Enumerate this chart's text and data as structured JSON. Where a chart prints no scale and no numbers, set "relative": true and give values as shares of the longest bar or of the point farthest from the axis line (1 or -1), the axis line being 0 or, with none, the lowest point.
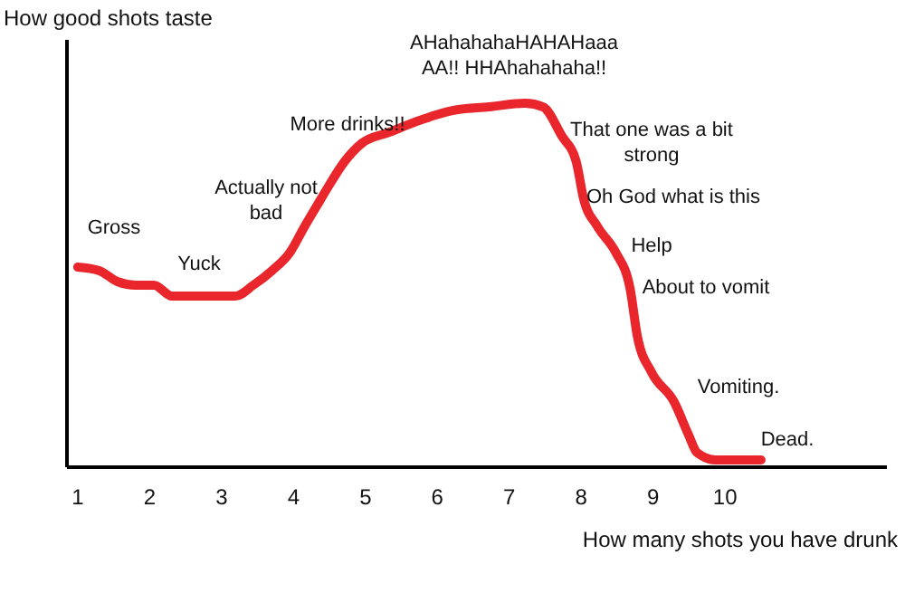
{
  "chart_data": {
    "type": "line",
    "relative": true,
    "ylabel": "How good shots taste",
    "xlabel": "How many shots you have drunk",
    "xlim": [
      0.85,
      12.25
    ],
    "xticks": [
      1,
      2,
      3,
      4,
      5,
      6,
      7,
      8,
      9,
      10
    ],
    "grid": false,
    "marker": "none",
    "line_style": "solid",
    "series": [
      {
        "color": "#e8262b",
        "x": [
          1.0,
          1.3,
          1.55,
          1.81,
          2.06,
          2.31,
          2.69,
          3.19,
          3.44,
          3.7,
          3.95,
          4.15,
          4.33,
          4.45,
          4.71,
          4.95,
          5.33,
          5.71,
          6.21,
          6.72,
          7.22,
          7.47,
          7.73,
          7.93,
          8.03,
          8.23,
          8.48,
          8.68,
          8.78,
          8.98,
          9.29,
          9.49,
          9.61,
          9.87,
          10.24,
          10.5
        ],
        "values": [
          0.55,
          0.54,
          0.51,
          0.5,
          0.5,
          0.47,
          0.47,
          0.47,
          0.5,
          0.54,
          0.59,
          0.66,
          0.72,
          0.76,
          0.84,
          0.89,
          0.92,
          0.95,
          0.98,
          0.99,
          1.0,
          0.99,
          0.91,
          0.84,
          0.74,
          0.66,
          0.59,
          0.49,
          0.36,
          0.26,
          0.18,
          0.09,
          0.04,
          0.02,
          0.02,
          0.02
        ]
      }
    ],
    "annotations": [
      "Gross",
      "Yuck",
      "Actually not\nbad",
      "More drinks!!",
      "AHahahahaHAHAHaaa\nAA!! HHAhahahaha!!",
      "That one was a bit\nstrong",
      "Oh God what is this",
      "Help",
      "About to vomit",
      "Vomiting.",
      "Dead."
    ]
  }
}
